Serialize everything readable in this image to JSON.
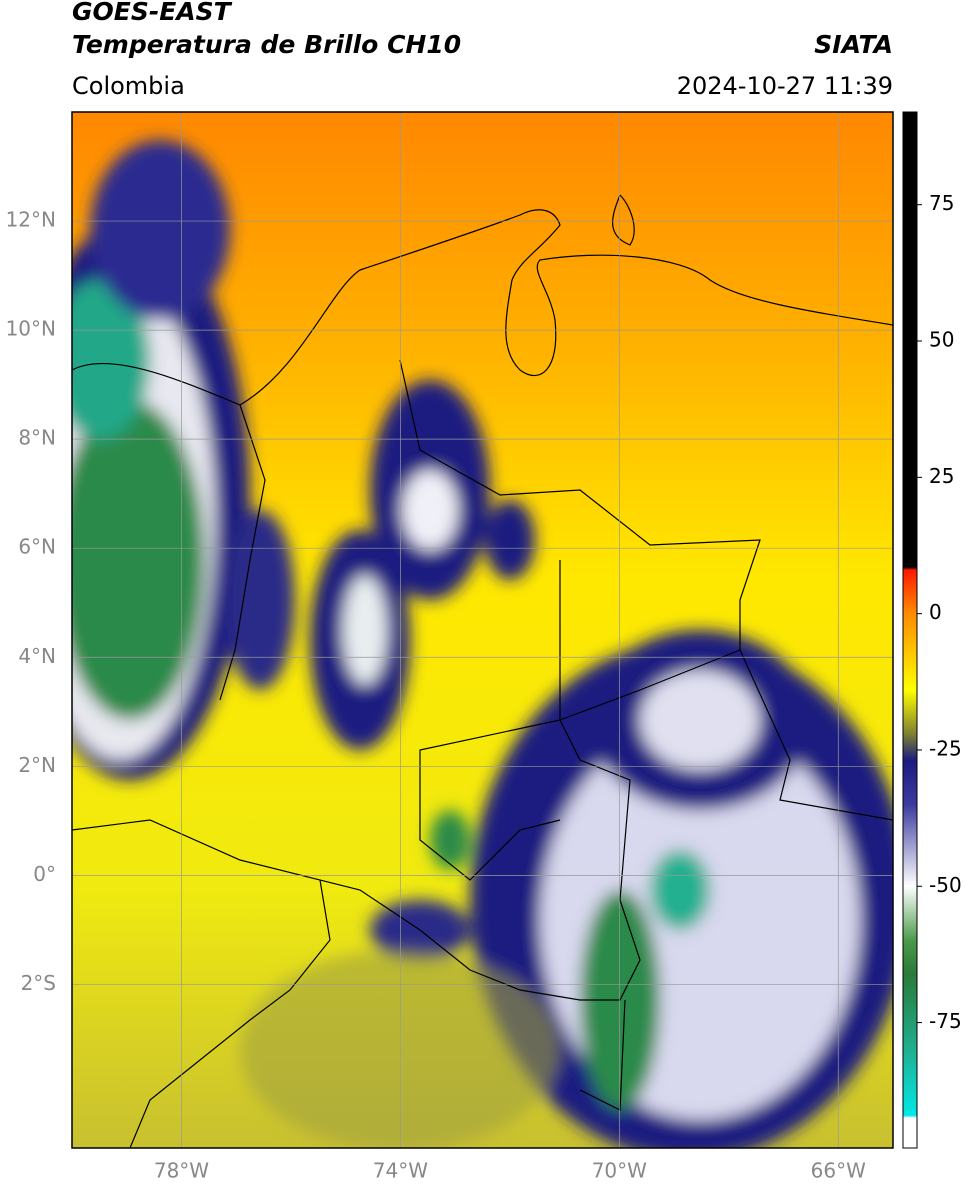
{
  "header": {
    "title": "GOES-EAST",
    "subtitle": "Temperatura de Brillo CH10",
    "region": "Colombia",
    "source": "SIATA",
    "datetime": "2024-10-27 11:39"
  },
  "map": {
    "xlim": [
      -80,
      -65
    ],
    "ylim": [
      -5,
      14
    ],
    "xticks": [
      {
        "value": -78,
        "label": "78°W"
      },
      {
        "value": -74,
        "label": "74°W"
      },
      {
        "value": -70,
        "label": "70°W"
      },
      {
        "value": -66,
        "label": "66°W"
      }
    ],
    "yticks": [
      {
        "value": 12,
        "label": "12°N"
      },
      {
        "value": 10,
        "label": "10°N"
      },
      {
        "value": 8,
        "label": "8°N"
      },
      {
        "value": 6,
        "label": "6°N"
      },
      {
        "value": 4,
        "label": "4°N"
      },
      {
        "value": 2,
        "label": "2°N"
      },
      {
        "value": 0,
        "label": "0°"
      },
      {
        "value": -2,
        "label": "2°S"
      }
    ]
  },
  "colorbar": {
    "lim": [
      -98,
      92
    ],
    "ticks": [
      75,
      50,
      25,
      0,
      -25,
      -50,
      -75
    ],
    "colormap": [
      {
        "value": 92,
        "color": "#000000"
      },
      {
        "value": 8.5,
        "color": "#000000"
      },
      {
        "value": 8,
        "color": "#ff1a00"
      },
      {
        "value": 0,
        "color": "#ff8c00"
      },
      {
        "value": -14,
        "color": "#ffff00"
      },
      {
        "value": -22,
        "color": "#808030"
      },
      {
        "value": -27,
        "color": "#1a1a80"
      },
      {
        "value": -35,
        "color": "#3c3ca0"
      },
      {
        "value": -50,
        "color": "#ffffff"
      },
      {
        "value": -60,
        "color": "#4a9a4a"
      },
      {
        "value": -66,
        "color": "#2a7a3a"
      },
      {
        "value": -80,
        "color": "#20b090"
      },
      {
        "value": -92,
        "color": "#00e8e8"
      },
      {
        "value": -92.5,
        "color": "#ffffff"
      },
      {
        "value": -98,
        "color": "#ffffff"
      }
    ]
  }
}
